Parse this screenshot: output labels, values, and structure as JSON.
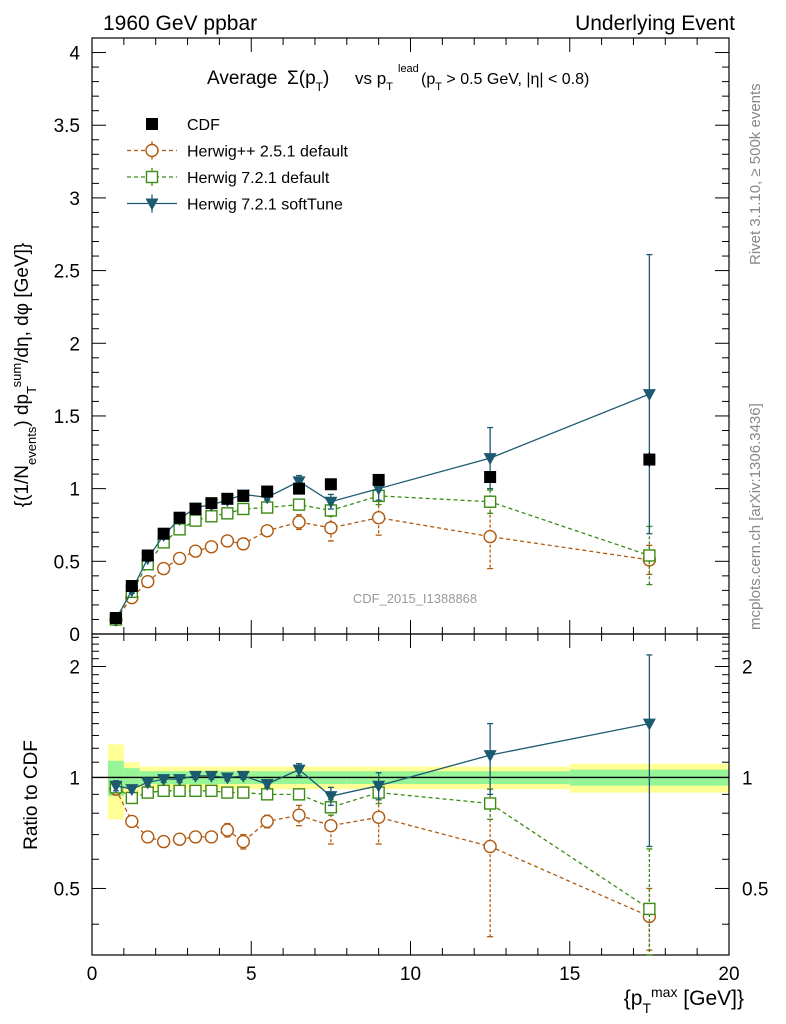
{
  "header": {
    "left": "1960 GeV ppbar",
    "right": "Underlying Event"
  },
  "side_labels": {
    "rivet": "Rivet 3.1.10, ≥ 500k events",
    "mcplots": "mcplots.cern.ch [arXiv:1306.3436]"
  },
  "watermark": "CDF_2015_I1388868",
  "colors": {
    "cdf": "#000000",
    "herwigpp": "#b05a10",
    "herwig721": "#3c8c14",
    "softtune": "#1c5a70",
    "band_yellow": "#ffff96",
    "band_green": "#96f596"
  },
  "chart_data": [
    {
      "type": "scatter",
      "panel": "main",
      "title": "Average Σ(pT) vs pT lead (pT > 0.5 GeV, |η| < 0.8)",
      "xlabel": "{pT max [GeV]}",
      "ylabel": "{(1/Nevents) dpT sum/dη, dφ [GeV]}",
      "xlim": [
        0,
        20
      ],
      "ylim": [
        0,
        4.1
      ],
      "yticks": [
        "0",
        "0.5",
        "1",
        "1.5",
        "2",
        "2.5",
        "3",
        "3.5",
        "4"
      ],
      "legend_position": "top-left",
      "series": [
        {
          "name": "CDF",
          "marker": "filled-square",
          "color_key": "cdf",
          "x": [
            0.75,
            1.25,
            1.75,
            2.25,
            2.75,
            3.25,
            3.75,
            4.25,
            4.75,
            5.5,
            6.5,
            7.5,
            9,
            12.5,
            17.5
          ],
          "y": [
            0.11,
            0.33,
            0.54,
            0.69,
            0.8,
            0.86,
            0.9,
            0.93,
            0.95,
            0.98,
            1.0,
            1.03,
            1.06,
            1.08,
            1.2
          ],
          "err": [
            0.02,
            0.02,
            0.02,
            0.02,
            0.02,
            0.02,
            0.02,
            0.02,
            0.02,
            0.02,
            0.02,
            0.02,
            0.02,
            0.03,
            0.05
          ]
        },
        {
          "name": "Herwig++ 2.5.1 default",
          "marker": "open-circle",
          "line": "dashed",
          "color_key": "herwigpp",
          "x": [
            0.75,
            1.25,
            1.75,
            2.25,
            2.75,
            3.25,
            3.75,
            4.25,
            4.75,
            5.5,
            6.5,
            7.5,
            9,
            12.5,
            17.5
          ],
          "y": [
            0.1,
            0.25,
            0.36,
            0.45,
            0.52,
            0.57,
            0.6,
            0.64,
            0.62,
            0.71,
            0.77,
            0.73,
            0.8,
            0.67,
            0.51
          ],
          "err": [
            0.01,
            0.02,
            0.02,
            0.02,
            0.02,
            0.02,
            0.02,
            0.03,
            0.03,
            0.03,
            0.05,
            0.09,
            0.12,
            0.22,
            0.1
          ]
        },
        {
          "name": "Herwig 7.2.1 default",
          "marker": "open-square",
          "line": "dashed",
          "color_key": "herwig721",
          "x": [
            0.75,
            1.25,
            1.75,
            2.25,
            2.75,
            3.25,
            3.75,
            4.25,
            4.75,
            5.5,
            6.5,
            7.5,
            9,
            12.5,
            17.5
          ],
          "y": [
            0.1,
            0.29,
            0.48,
            0.63,
            0.72,
            0.78,
            0.81,
            0.83,
            0.86,
            0.87,
            0.89,
            0.85,
            0.95,
            0.91,
            0.54
          ],
          "err": [
            0.01,
            0.02,
            0.02,
            0.02,
            0.02,
            0.02,
            0.02,
            0.02,
            0.02,
            0.02,
            0.03,
            0.04,
            0.06,
            0.08,
            0.2
          ]
        },
        {
          "name": "Herwig 7.2.1 softTune",
          "marker": "filled-triangle-down",
          "line": "solid",
          "color_key": "softtune",
          "x": [
            0.75,
            1.25,
            1.75,
            2.25,
            2.75,
            3.25,
            3.75,
            4.25,
            4.75,
            5.5,
            6.5,
            7.5,
            9,
            12.5,
            17.5
          ],
          "y": [
            0.1,
            0.3,
            0.52,
            0.68,
            0.79,
            0.87,
            0.89,
            0.92,
            0.96,
            0.94,
            1.05,
            0.91,
            1.0,
            1.21,
            1.65
          ],
          "err": [
            0.01,
            0.02,
            0.02,
            0.02,
            0.02,
            0.02,
            0.02,
            0.02,
            0.02,
            0.02,
            0.04,
            0.05,
            0.08,
            0.21,
            0.96
          ]
        }
      ]
    },
    {
      "type": "scatter",
      "panel": "ratio",
      "xlabel": "{pT max [GeV]}",
      "ylabel": "Ratio to CDF",
      "xlim": [
        0,
        20
      ],
      "ylim": [
        0.33,
        2.45
      ],
      "log_y": true,
      "xticks": [
        "0",
        "5",
        "10",
        "15",
        "20"
      ],
      "yticks": [
        "0.5",
        "1",
        "2"
      ],
      "band_edges": [
        0.5,
        1.0,
        1.5,
        2.0,
        2.5,
        3.0,
        3.5,
        4.0,
        4.5,
        5.0,
        6.0,
        7.0,
        8.0,
        10.0,
        15.0,
        20.0
      ],
      "band_yellow": [
        0.23,
        0.1,
        0.07,
        0.07,
        0.07,
        0.07,
        0.07,
        0.07,
        0.07,
        0.07,
        0.07,
        0.07,
        0.07,
        0.07,
        0.09
      ],
      "band_green": [
        0.11,
        0.06,
        0.04,
        0.04,
        0.04,
        0.04,
        0.04,
        0.04,
        0.04,
        0.04,
        0.04,
        0.04,
        0.04,
        0.04,
        0.05
      ],
      "series": [
        {
          "name": "Herwig++ 2.5.1 default",
          "color_key": "herwigpp",
          "x": [
            0.75,
            1.25,
            1.75,
            2.25,
            2.75,
            3.25,
            3.75,
            4.25,
            4.75,
            5.5,
            6.5,
            7.5,
            9,
            12.5,
            17.5
          ],
          "y": [
            0.93,
            0.76,
            0.69,
            0.67,
            0.68,
            0.69,
            0.69,
            0.72,
            0.67,
            0.76,
            0.79,
            0.74,
            0.78,
            0.65,
            0.42
          ],
          "err": [
            0.03,
            0.02,
            0.02,
            0.02,
            0.02,
            0.02,
            0.02,
            0.03,
            0.03,
            0.03,
            0.05,
            0.08,
            0.12,
            0.28,
            0.08
          ]
        },
        {
          "name": "Herwig 7.2.1 default",
          "color_key": "herwig721",
          "x": [
            0.75,
            1.25,
            1.75,
            2.25,
            2.75,
            3.25,
            3.75,
            4.25,
            4.75,
            5.5,
            6.5,
            7.5,
            9,
            12.5,
            17.5
          ],
          "y": [
            0.94,
            0.88,
            0.91,
            0.92,
            0.92,
            0.92,
            0.92,
            0.91,
            0.91,
            0.9,
            0.9,
            0.83,
            0.91,
            0.85,
            0.44
          ],
          "err": [
            0.03,
            0.02,
            0.02,
            0.02,
            0.02,
            0.02,
            0.02,
            0.02,
            0.02,
            0.02,
            0.03,
            0.04,
            0.06,
            0.08,
            0.2
          ]
        },
        {
          "name": "Herwig 7.2.1 softTune",
          "color_key": "softtune",
          "x": [
            0.75,
            1.25,
            1.75,
            2.25,
            2.75,
            3.25,
            3.75,
            4.25,
            4.75,
            5.5,
            6.5,
            7.5,
            9,
            12.5,
            17.5
          ],
          "y": [
            0.95,
            0.93,
            0.97,
            0.99,
            0.99,
            1.01,
            1.01,
            1.0,
            1.01,
            0.96,
            1.05,
            0.89,
            0.95,
            1.15,
            1.4
          ],
          "err": [
            0.03,
            0.02,
            0.02,
            0.02,
            0.02,
            0.02,
            0.02,
            0.02,
            0.02,
            0.02,
            0.04,
            0.05,
            0.08,
            0.25,
            0.75
          ]
        }
      ]
    }
  ]
}
